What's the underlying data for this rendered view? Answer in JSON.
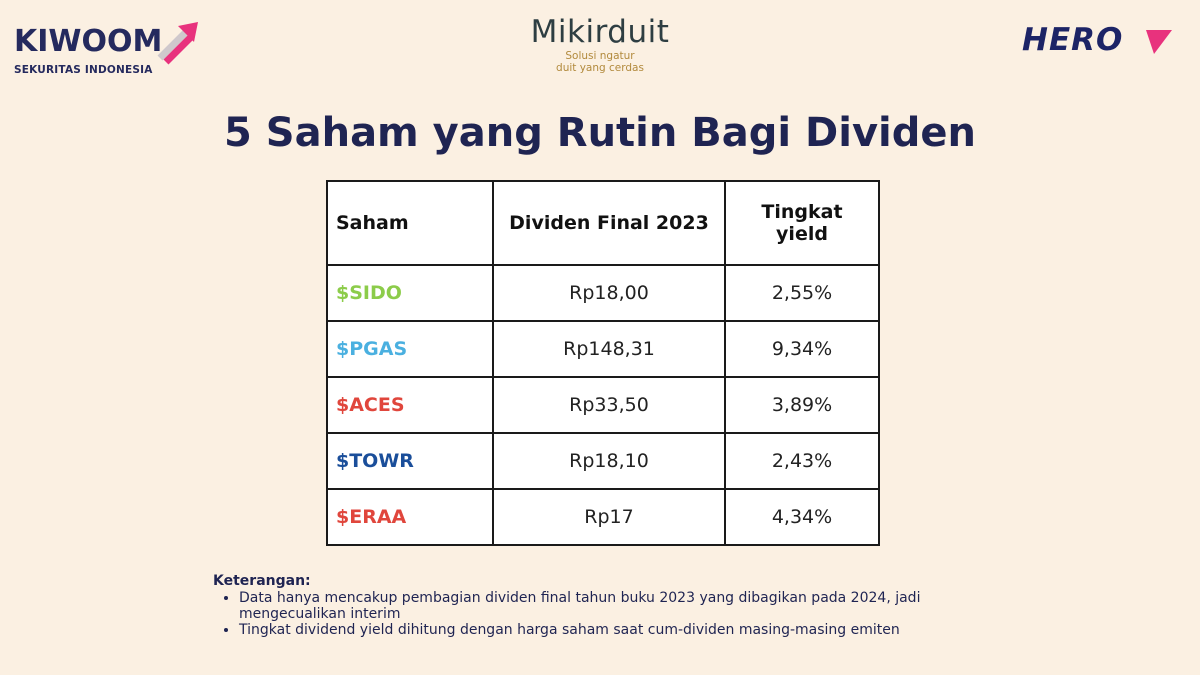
{
  "brand": {
    "kiwoom_name": "KIWOOM",
    "kiwoom_sub": "SEKURITAS INDONESIA",
    "mikir_name": "Mikirduit",
    "mikir_tag_line1": "Solusi ngatur",
    "mikir_tag_line2": "duit yang cerdas",
    "hero_name": "HERO"
  },
  "title": "5 Saham yang Rutin Bagi Dividen",
  "table": {
    "headers": [
      "Saham",
      "Dividen Final 2023",
      "Tingkat yield"
    ],
    "header_yield_line1": "Tingkat",
    "header_yield_line2": "yield",
    "rows": [
      {
        "ticker": "$SIDO",
        "dividend": "Rp18,00",
        "yield": "2,55%",
        "color": "#8ccc4a"
      },
      {
        "ticker": "$PGAS",
        "dividend": "Rp148,31",
        "yield": "9,34%",
        "color": "#4ab0e0"
      },
      {
        "ticker": "$ACES",
        "dividend": "Rp33,50",
        "yield": "3,89%",
        "color": "#e0463c"
      },
      {
        "ticker": "$TOWR",
        "dividend": "Rp18,10",
        "yield": "2,43%",
        "color": "#1a4e9a"
      },
      {
        "ticker": "$ERAA",
        "dividend": "Rp17",
        "yield": "4,34%",
        "color": "#e0463c"
      }
    ]
  },
  "notes": {
    "title": "Keterangan:",
    "items": [
      "Data hanya mencakup pembagian dividen final tahun buku 2023 yang dibagikan pada 2024, jadi mengecualikan interim",
      "Tingkat dividend yield dihitung dengan harga saham saat cum-dividen masing-masing emiten"
    ]
  },
  "colors": {
    "background": "#fbf0e2",
    "navy": "#1f2452",
    "kiwoom_arrow": "#e8327d",
    "hero_accent": "#e8327d"
  }
}
